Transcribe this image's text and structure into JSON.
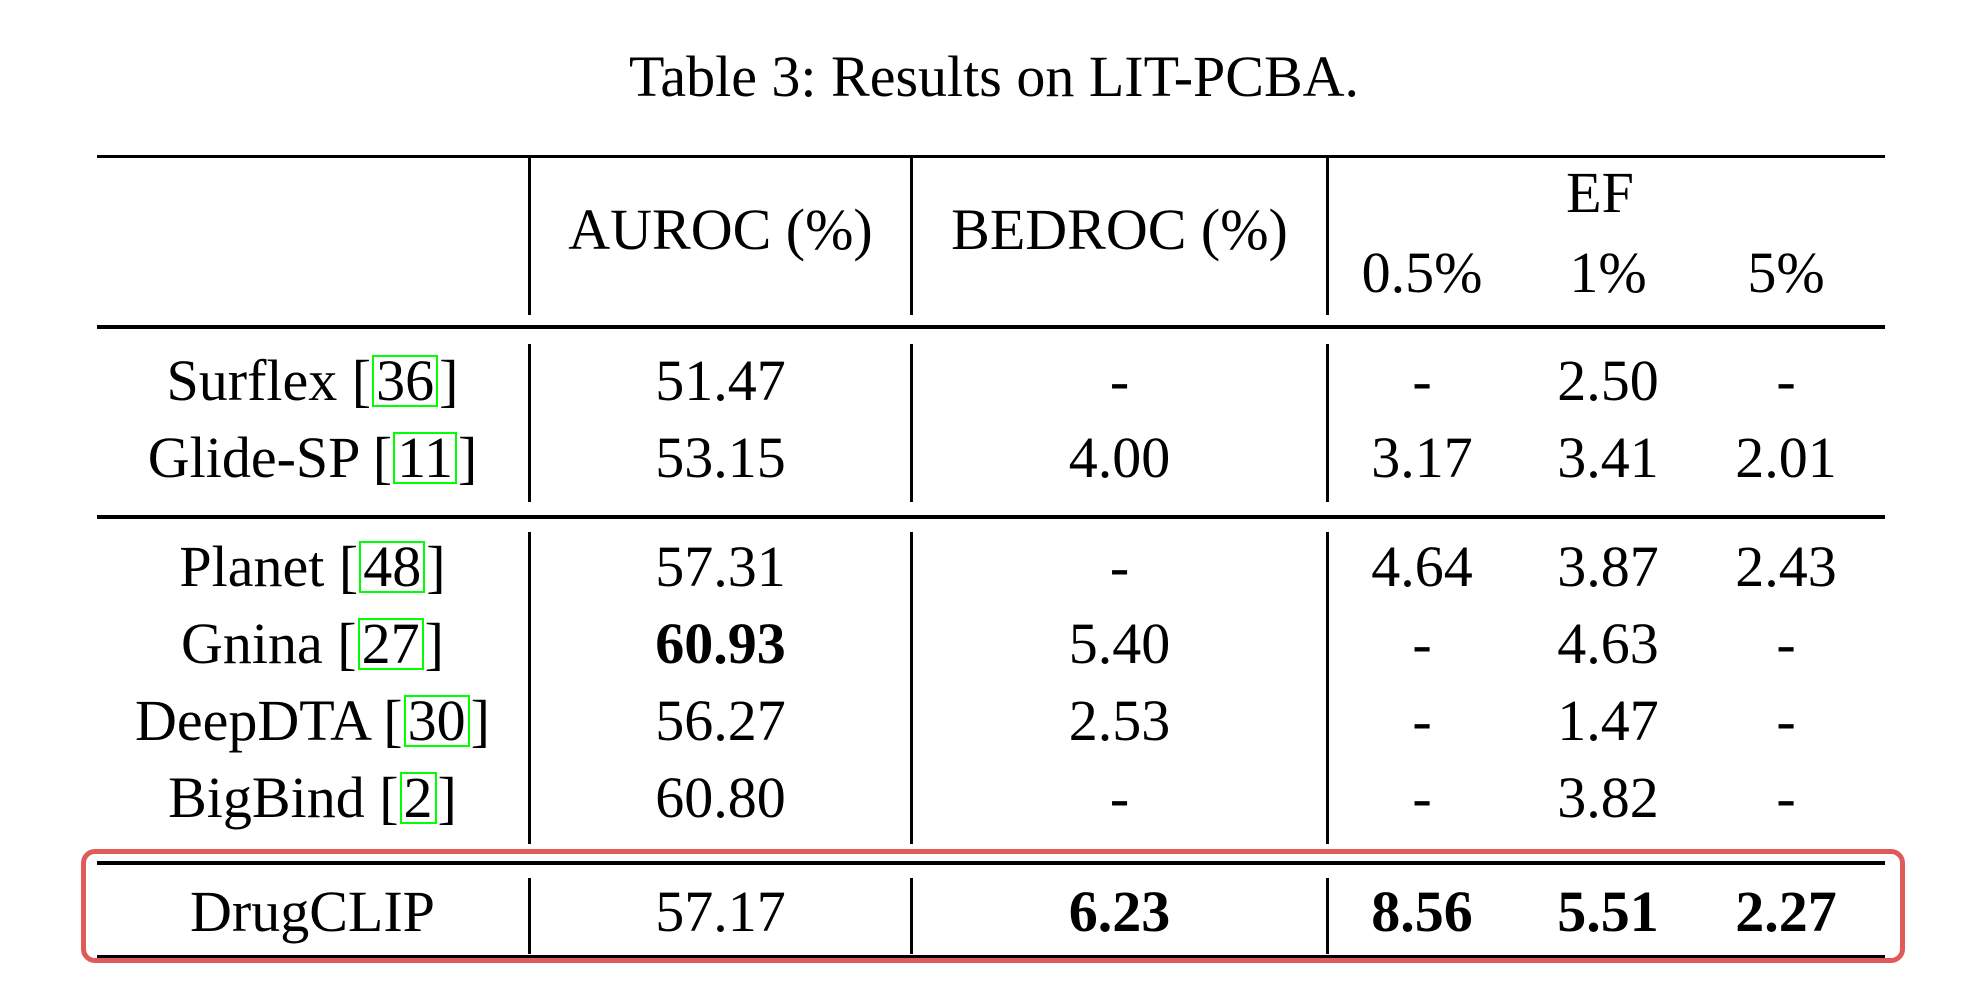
{
  "caption": "Table 3: Results on LIT-PCBA.",
  "headers": {
    "auroc": "AUROC (%)",
    "bedroc": "BEDROC (%)",
    "ef": "EF",
    "ef_05": "0.5%",
    "ef_1": "1%",
    "ef_5": "5%"
  },
  "rows": [
    {
      "name": "Surflex ",
      "cite": "36",
      "auroc": "51.47",
      "bedroc": "-",
      "ef05": "-",
      "ef1": "2.50",
      "ef5": "-"
    },
    {
      "name": "Glide-SP ",
      "cite": "11",
      "auroc": "53.15",
      "bedroc": "4.00",
      "ef05": "3.17",
      "ef1": "3.41",
      "ef5": "2.01"
    },
    {
      "name": "Planet ",
      "cite": "48",
      "auroc": "57.31",
      "bedroc": "-",
      "ef05": "4.64",
      "ef1": "3.87",
      "ef5": "2.43"
    },
    {
      "name": "Gnina ",
      "cite": "27",
      "auroc": "60.93",
      "bedroc": "5.40",
      "ef05": "-",
      "ef1": "4.63",
      "ef5": "-"
    },
    {
      "name": "DeepDTA ",
      "cite": "30",
      "auroc": "56.27",
      "bedroc": "2.53",
      "ef05": "-",
      "ef1": "1.47",
      "ef5": "-"
    },
    {
      "name": "BigBind ",
      "cite": "2",
      "auroc": "60.80",
      "bedroc": "-",
      "ef05": "-",
      "ef1": "3.82",
      "ef5": "-"
    },
    {
      "name": "DrugCLIP",
      "cite": "",
      "auroc": "57.17",
      "bedroc": "6.23",
      "ef05": "8.56",
      "ef1": "5.51",
      "ef5": "2.27"
    }
  ]
}
